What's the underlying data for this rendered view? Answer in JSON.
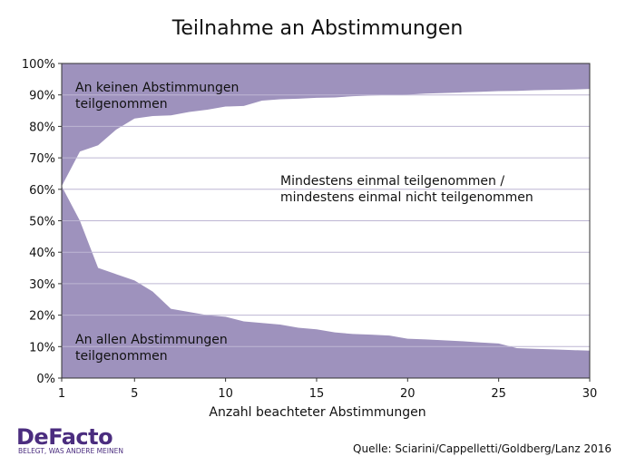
{
  "colors": {
    "area": "#9e92bd",
    "grid": "#bdb6d3",
    "brand": "#4b2d7f"
  },
  "logo": {
    "name": "DeFacto",
    "tagline": "BELEGT, WAS ANDERE MEINEN"
  },
  "source": "Quelle: Sciarini/Cappelletti/Goldberg/Lanz 2016",
  "chart_data": {
    "type": "area",
    "title": "Teilnahme an Abstimmungen",
    "xlabel": "Anzahl beachteter Abstimmungen",
    "ylabel": "",
    "xlim": [
      1,
      30
    ],
    "ylim": [
      0,
      100
    ],
    "x_ticks": [
      1,
      5,
      10,
      15,
      20,
      25,
      30
    ],
    "y_ticks": [
      0,
      10,
      20,
      30,
      40,
      50,
      60,
      70,
      80,
      90,
      100
    ],
    "y_unit": "%",
    "grid": true,
    "x": [
      1,
      2,
      3,
      4,
      5,
      6,
      7,
      8,
      9,
      10,
      11,
      12,
      13,
      14,
      15,
      16,
      17,
      18,
      19,
      20,
      21,
      22,
      23,
      24,
      25,
      26,
      27,
      28,
      29,
      30
    ],
    "series": [
      {
        "name": "An allen Abstimmungen teilgenommen",
        "values": [
          61,
          50,
          35,
          33,
          31,
          27.5,
          22,
          21,
          20,
          19.5,
          18,
          17.5,
          17,
          16,
          15.5,
          14.5,
          14,
          13.8,
          13.5,
          12.5,
          12.3,
          12,
          11.7,
          11.3,
          11,
          9.5,
          9.3,
          9.1,
          8.9,
          8.7
        ]
      },
      {
        "name": "Mindestens einmal teilgenommen / mindestens einmal nicht teilgenommen",
        "boundary_upper": [
          61,
          72,
          74,
          79,
          82.5,
          83.3,
          83.5,
          84.6,
          85.3,
          86.3,
          86.5,
          88.2,
          88.6,
          88.8,
          89.1,
          89.2,
          89.6,
          89.8,
          90,
          90.1,
          90.4,
          90.6,
          90.8,
          91,
          91.2,
          91.3,
          91.5,
          91.6,
          91.7,
          91.9
        ]
      },
      {
        "name": "An keinen Abstimmungen teilgenommen",
        "values": [
          39,
          28,
          26,
          21,
          17.5,
          16.7,
          16.5,
          15.4,
          14.7,
          13.7,
          13.5,
          11.8,
          11.4,
          11.2,
          10.9,
          10.8,
          10.4,
          10.2,
          10,
          9.9,
          9.6,
          9.4,
          9.2,
          9,
          8.8,
          8.7,
          8.5,
          8.4,
          8.3,
          8.1
        ]
      }
    ],
    "annotations": [
      {
        "lines": [
          "An keinen Abstimmungen",
          "teilgenommen"
        ]
      },
      {
        "lines": [
          "Mindestens einmal teilgenommen /",
          "mindestens einmal nicht teilgenommen"
        ]
      },
      {
        "lines": [
          "An allen Abstimmungen",
          "teilgenommen"
        ]
      }
    ]
  }
}
